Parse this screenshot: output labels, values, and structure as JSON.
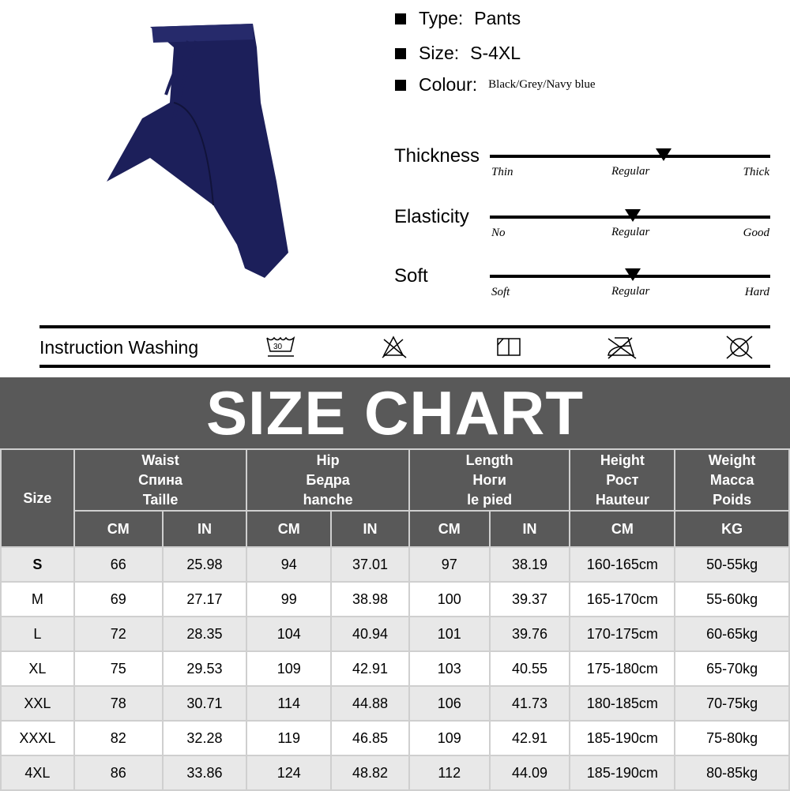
{
  "specs": [
    {
      "label": "Type:",
      "value": "Pants"
    },
    {
      "label": "Size:",
      "value": "S-4XL"
    },
    {
      "label": "Colour:",
      "value": "Black/Grey/Navy blue"
    }
  ],
  "product_color": "#1c1f5a",
  "ratings": [
    {
      "label": "Thickness",
      "left": "Thin",
      "mid": "Regular",
      "right": "Thick",
      "level": 0.62
    },
    {
      "label": "Elasticity",
      "left": "No",
      "mid": "Regular",
      "right": "Good",
      "level": 0.51
    },
    {
      "label": "Soft",
      "left": "Soft",
      "mid": "Regular",
      "right": "Hard",
      "level": 0.51
    }
  ],
  "washing": {
    "label": "Instruction Washing",
    "temp": "30",
    "icons": [
      "wash-30-icon",
      "no-bleach-icon",
      "dry-flat-icon",
      "no-iron-icon",
      "no-tumble-dry-icon"
    ]
  },
  "chart_title": "SIZE CHART",
  "table": {
    "size_header": "Size",
    "groups": [
      {
        "l1": "Waist",
        "l2": "Спина",
        "l3": "Taille",
        "units": [
          "CM",
          "IN"
        ]
      },
      {
        "l1": "Hip",
        "l2": "Бедра",
        "l3": "hanche",
        "units": [
          "CM",
          "IN"
        ]
      },
      {
        "l1": "Length",
        "l2": "Ноги",
        "l3": "le pied",
        "units": [
          "CM",
          "IN"
        ]
      },
      {
        "l1": "Height",
        "l2": "Рост",
        "l3": "Hauteur",
        "units": [
          "CM"
        ]
      },
      {
        "l1": "Weight",
        "l2": "Масса",
        "l3": "Poids",
        "units": [
          "KG"
        ]
      }
    ],
    "rows": [
      [
        "S",
        "66",
        "25.98",
        "94",
        "37.01",
        "97",
        "38.19",
        "160-165cm",
        "50-55kg"
      ],
      [
        "M",
        "69",
        "27.17",
        "99",
        "38.98",
        "100",
        "39.37",
        "165-170cm",
        "55-60kg"
      ],
      [
        "L",
        "72",
        "28.35",
        "104",
        "40.94",
        "101",
        "39.76",
        "170-175cm",
        "60-65kg"
      ],
      [
        "XL",
        "75",
        "29.53",
        "109",
        "42.91",
        "103",
        "40.55",
        "175-180cm",
        "65-70kg"
      ],
      [
        "XXL",
        "78",
        "30.71",
        "114",
        "44.88",
        "106",
        "41.73",
        "180-185cm",
        "70-75kg"
      ],
      [
        "XXXL",
        "82",
        "32.28",
        "119",
        "46.85",
        "109",
        "42.91",
        "185-190cm",
        "75-80kg"
      ],
      [
        "4XL",
        "86",
        "33.86",
        "124",
        "48.82",
        "112",
        "44.09",
        "185-190cm",
        "80-85kg"
      ]
    ]
  }
}
